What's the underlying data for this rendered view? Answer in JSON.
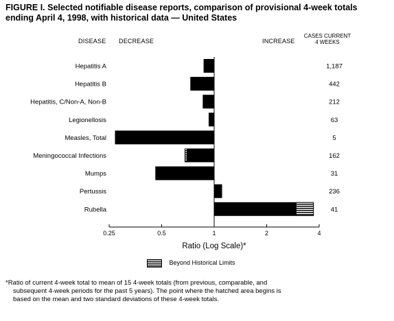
{
  "title": {
    "line1": "FIGURE I. Selected notifiable disease reports, comparison of provisional 4-week totals",
    "line2": "ending April 4, 1998, with historical data — United States"
  },
  "headers": {
    "disease": "DISEASE",
    "decrease": "DECREASE",
    "increase": "INCREASE",
    "cases_line1": "CASES CURRENT",
    "cases_line2": "4 WEEKS"
  },
  "legend": {
    "label": "Beyond Historical Limits"
  },
  "footnote": {
    "line1": "*Ratio of current 4-week total to mean of 15 4-week totals (from previous, comparable, and",
    "line2": "subsequent 4-week periods for the past 5 years). The point where the hatched area begins is",
    "line3": "based on the mean and two standard deviations of these 4-week totals."
  },
  "chart_data": {
    "type": "bar",
    "orientation": "horizontal",
    "scale": "log2",
    "xlabel": "Ratio (Log Scale)*",
    "xticks": [
      0.25,
      0.5,
      1,
      2,
      4
    ],
    "xtick_labels": [
      "0.25",
      "0.5",
      "1",
      "2",
      "4"
    ],
    "xlim": [
      0.25,
      4
    ],
    "categories": [
      "Hepatitis A",
      "Hepatitis B",
      "Hepatitis, C/Non-A, Non-B",
      "Legionellosis",
      "Measles, Total",
      "Meningococcal Infections",
      "Mumps",
      "Pertussis",
      "Rubella"
    ],
    "values": [
      0.87,
      0.73,
      0.86,
      0.93,
      0.27,
      0.68,
      0.46,
      1.11,
      3.71
    ],
    "beyond_limits_from": [
      null,
      null,
      null,
      null,
      null,
      0.7,
      null,
      null,
      2.95
    ],
    "cases_current_4_weeks": [
      "1,187",
      "442",
      "212",
      "63",
      "5",
      "162",
      "31",
      "236",
      "41"
    ]
  }
}
